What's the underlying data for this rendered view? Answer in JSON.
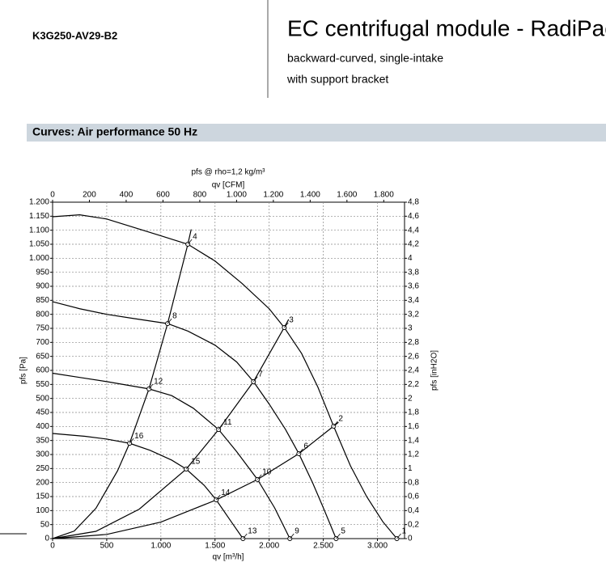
{
  "header": {
    "code": "K3G250-AV29-B2",
    "title": "EC centrifugal module - RadiPac",
    "subtitle": [
      "backward-curved, single-intake",
      "with support bracket"
    ]
  },
  "section": {
    "title": "Curves: Air performance 50 Hz"
  },
  "chart_data": {
    "type": "line",
    "title": "pfs @ rho=1,2 kg/m³",
    "x_label": "qv [m³/h]",
    "x2_label": "qv [CFM]",
    "y_label": "pfs [Pa]",
    "y2_label": "pfs [inH2O]",
    "xlim": [
      0,
      3250
    ],
    "xticks": [
      0,
      500,
      {
        "value": 1000,
        "label": "1.000"
      },
      {
        "value": 1500,
        "label": "1.500"
      },
      {
        "value": 2000,
        "label": "2.000"
      },
      {
        "value": 2500,
        "label": "2.500"
      },
      {
        "value": 3000,
        "label": "3.000"
      }
    ],
    "x2lim": [
      0,
      1913
    ],
    "x2ticks": [
      0,
      200,
      400,
      600,
      800,
      {
        "value": 1000,
        "label": "1.000"
      },
      {
        "value": 1200,
        "label": "1.200"
      },
      {
        "value": 1400,
        "label": "1.400"
      },
      {
        "value": 1600,
        "label": "1.600"
      },
      {
        "value": 1800,
        "label": "1.800"
      }
    ],
    "ylim": [
      0,
      1200
    ],
    "yticks": [
      0,
      50,
      100,
      150,
      200,
      250,
      300,
      350,
      400,
      450,
      500,
      550,
      600,
      650,
      700,
      750,
      800,
      850,
      900,
      950,
      {
        "value": 1000,
        "label": "1.000"
      },
      {
        "value": 1050,
        "label": "1.050"
      },
      {
        "value": 1100,
        "label": "1.100"
      },
      {
        "value": 1150,
        "label": "1.150"
      },
      {
        "value": 1200,
        "label": "1.200"
      }
    ],
    "y2lim": [
      0,
      4.8
    ],
    "y2ticks": [
      0,
      {
        "value": 0.2,
        "label": "0,2"
      },
      {
        "value": 0.4,
        "label": "0,4"
      },
      {
        "value": 0.6,
        "label": "0,6"
      },
      {
        "value": 0.8,
        "label": "0,8"
      },
      1,
      {
        "value": 1.2,
        "label": "1,2"
      },
      {
        "value": 1.4,
        "label": "1,4"
      },
      {
        "value": 1.6,
        "label": "1,6"
      },
      {
        "value": 1.8,
        "label": "1,8"
      },
      2,
      {
        "value": 2.2,
        "label": "2,2"
      },
      {
        "value": 2.4,
        "label": "2,4"
      },
      {
        "value": 2.6,
        "label": "2,6"
      },
      {
        "value": 2.8,
        "label": "2,8"
      },
      3,
      {
        "value": 3.2,
        "label": "3,2"
      },
      {
        "value": 3.4,
        "label": "3,4"
      },
      {
        "value": 3.6,
        "label": "3,6"
      },
      {
        "value": 3.8,
        "label": "3,8"
      },
      4,
      {
        "value": 4.2,
        "label": "4,2"
      },
      {
        "value": 4.4,
        "label": "4,4"
      },
      {
        "value": 4.6,
        "label": "4,6"
      },
      {
        "value": 4.8,
        "label": "4,8"
      }
    ],
    "grid": true,
    "series": [
      {
        "color": "#000000",
        "x": [
          0,
          250,
          500,
          750,
          1000,
          1249,
          1500,
          1750,
          2000,
          2139,
          2300,
          2450,
          2595,
          2750,
          2900,
          3050,
          3179
        ],
        "values": [
          1148,
          1155,
          1140,
          1110,
          1080,
          1050,
          990,
          910,
          820,
          753,
          660,
          540,
          401,
          260,
          150,
          60,
          0
        ]
      },
      {
        "color": "#000000",
        "x": [
          0,
          250,
          500,
          750,
          1062,
          1250,
          1500,
          1700,
          1855,
          2000,
          2150,
          2274,
          2400,
          2500,
          2618
        ],
        "values": [
          845,
          820,
          800,
          785,
          767,
          740,
          690,
          630,
          560,
          480,
          390,
          303,
          200,
          110,
          0
        ]
      },
      {
        "color": "#000000",
        "x": [
          0,
          250,
          500,
          890,
          1100,
          1300,
          1533,
          1700,
          1892,
          2050,
          2191
        ],
        "values": [
          590,
          575,
          560,
          534,
          510,
          465,
          389,
          310,
          211,
          110,
          0
        ]
      },
      {
        "color": "#000000",
        "x": [
          0,
          300,
          500,
          711,
          900,
          1100,
          1234,
          1400,
          1511,
          1650,
          1758
        ],
        "values": [
          375,
          365,
          355,
          340,
          315,
          280,
          248,
          190,
          138,
          60,
          0
        ]
      },
      {
        "color": "#000000",
        "x": [
          0,
          200,
          400,
          600,
          711,
          890,
          1062,
          1249,
          1280
        ],
        "values": [
          0,
          27,
          108,
          242,
          340,
          534,
          767,
          1050,
          1103
        ]
      },
      {
        "color": "#000000",
        "x": [
          0,
          400,
          800,
          1234,
          1533,
          1855,
          2139,
          2180
        ],
        "values": [
          0,
          26,
          105,
          248,
          389,
          560,
          753,
          782
        ]
      },
      {
        "color": "#000000",
        "x": [
          0,
          500,
          1000,
          1511,
          1892,
          2274,
          2595,
          2640
        ],
        "values": [
          0,
          15,
          59,
          138,
          211,
          303,
          401,
          415
        ]
      }
    ],
    "markers": {
      "labels": [
        "1",
        "2",
        "3",
        "4",
        "5",
        "6",
        "7",
        "8",
        "9",
        "10",
        "11",
        "12",
        "13",
        "14",
        "15",
        "16"
      ],
      "x": [
        3179,
        2595,
        2139,
        1249,
        2618,
        2274,
        1855,
        1062,
        2191,
        1892,
        1533,
        890,
        1758,
        1511,
        1234,
        711
      ],
      "values": [
        0,
        401,
        753,
        1050,
        0,
        303,
        560,
        767,
        0,
        211,
        389,
        534,
        0,
        138,
        248,
        340
      ]
    }
  }
}
